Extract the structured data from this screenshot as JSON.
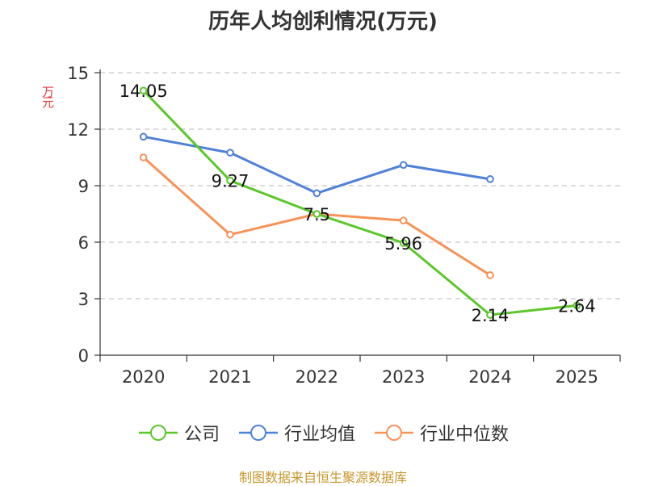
{
  "title": "历年人均创利情况(万元)",
  "unit_label": "万元",
  "source": "制图数据来自恒生聚源数据库",
  "chart_data": {
    "type": "line",
    "title": "历年人均创利情况(万元)",
    "ylabel": "万元",
    "xlabel": "",
    "categories": [
      "2020",
      "2021",
      "2022",
      "2023",
      "2024",
      "2025"
    ],
    "ylim": [
      0,
      15
    ],
    "yticks": [
      0,
      3,
      6,
      9,
      12,
      15
    ],
    "grid": true,
    "legend_position": "bottom",
    "series": [
      {
        "name": "公司",
        "color": "#5bc72a",
        "values": [
          14.05,
          9.27,
          7.5,
          5.96,
          2.14,
          2.64
        ],
        "labels": [
          "14.05",
          "9.27",
          "7.5",
          "5.96",
          "2.14",
          "2.64"
        ]
      },
      {
        "name": "行业均值",
        "color": "#4f81d9",
        "values": [
          11.6,
          10.75,
          8.6,
          10.1,
          9.35,
          null
        ]
      },
      {
        "name": "行业中位数",
        "color": "#f79258",
        "values": [
          10.5,
          6.4,
          7.5,
          7.15,
          4.25,
          null
        ]
      }
    ]
  }
}
